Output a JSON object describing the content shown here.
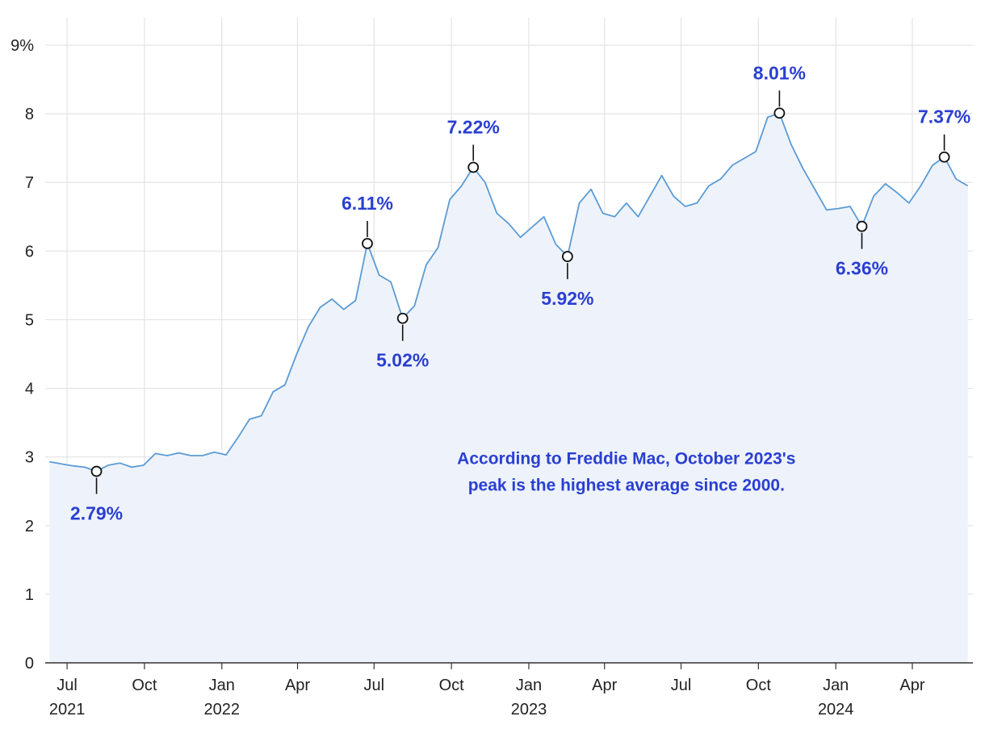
{
  "chart_data": {
    "type": "area",
    "series_color": "#5b9bd5",
    "fill_color": "#eef3fb",
    "accent_color": "#2a3fd1",
    "y_axis": {
      "ticks": [
        0,
        1,
        2,
        3,
        4,
        5,
        6,
        7,
        8,
        9
      ],
      "tick_labels": [
        "0",
        "1",
        "2",
        "3",
        "4",
        "5",
        "6",
        "7",
        "8",
        "9%"
      ],
      "ylim": [
        0,
        9
      ]
    },
    "x_axis": {
      "ticks": [
        {
          "date": "2021-07-01",
          "label": "Jul",
          "year": "2021"
        },
        {
          "date": "2021-10-01",
          "label": "Oct",
          "year": ""
        },
        {
          "date": "2022-01-01",
          "label": "Jan",
          "year": "2022"
        },
        {
          "date": "2022-04-01",
          "label": "Apr",
          "year": ""
        },
        {
          "date": "2022-07-01",
          "label": "Jul",
          "year": ""
        },
        {
          "date": "2022-10-01",
          "label": "Oct",
          "year": ""
        },
        {
          "date": "2023-01-01",
          "label": "Jan",
          "year": "2023"
        },
        {
          "date": "2023-04-01",
          "label": "Apr",
          "year": ""
        },
        {
          "date": "2023-07-01",
          "label": "Jul",
          "year": ""
        },
        {
          "date": "2023-10-01",
          "label": "Oct",
          "year": ""
        },
        {
          "date": "2024-01-01",
          "label": "Jan",
          "year": "2024"
        },
        {
          "date": "2024-04-01",
          "label": "Apr",
          "year": ""
        }
      ],
      "xlim": [
        "2021-06-05",
        "2024-06-12"
      ]
    },
    "grid": true,
    "points": [
      [
        "2021-06-10",
        2.93
      ],
      [
        "2021-06-24",
        2.9
      ],
      [
        "2021-07-08",
        2.87
      ],
      [
        "2021-07-22",
        2.85
      ],
      [
        "2021-08-05",
        2.79
      ],
      [
        "2021-08-19",
        2.88
      ],
      [
        "2021-09-02",
        2.91
      ],
      [
        "2021-09-16",
        2.85
      ],
      [
        "2021-09-30",
        2.88
      ],
      [
        "2021-10-14",
        3.05
      ],
      [
        "2021-10-28",
        3.02
      ],
      [
        "2021-11-11",
        3.06
      ],
      [
        "2021-11-25",
        3.02
      ],
      [
        "2021-12-09",
        3.02
      ],
      [
        "2021-12-23",
        3.07
      ],
      [
        "2022-01-06",
        3.03
      ],
      [
        "2022-01-20",
        3.28
      ],
      [
        "2022-02-03",
        3.55
      ],
      [
        "2022-02-17",
        3.6
      ],
      [
        "2022-03-03",
        3.95
      ],
      [
        "2022-03-17",
        4.05
      ],
      [
        "2022-03-31",
        4.5
      ],
      [
        "2022-04-14",
        4.9
      ],
      [
        "2022-04-28",
        5.18
      ],
      [
        "2022-05-12",
        5.3
      ],
      [
        "2022-05-26",
        5.15
      ],
      [
        "2022-06-09",
        5.28
      ],
      [
        "2022-06-23",
        6.11
      ],
      [
        "2022-07-07",
        5.65
      ],
      [
        "2022-07-21",
        5.55
      ],
      [
        "2022-08-04",
        5.02
      ],
      [
        "2022-08-18",
        5.2
      ],
      [
        "2022-09-01",
        5.8
      ],
      [
        "2022-09-15",
        6.05
      ],
      [
        "2022-09-29",
        6.75
      ],
      [
        "2022-10-13",
        6.95
      ],
      [
        "2022-10-27",
        7.22
      ],
      [
        "2022-11-10",
        7.0
      ],
      [
        "2022-11-24",
        6.55
      ],
      [
        "2022-12-08",
        6.4
      ],
      [
        "2022-12-22",
        6.2
      ],
      [
        "2023-01-05",
        6.35
      ],
      [
        "2023-01-19",
        6.5
      ],
      [
        "2023-02-02",
        6.1
      ],
      [
        "2023-02-16",
        5.92
      ],
      [
        "2023-03-02",
        6.7
      ],
      [
        "2023-03-16",
        6.9
      ],
      [
        "2023-03-30",
        6.55
      ],
      [
        "2023-04-13",
        6.5
      ],
      [
        "2023-04-27",
        6.7
      ],
      [
        "2023-05-11",
        6.5
      ],
      [
        "2023-05-25",
        6.8
      ],
      [
        "2023-06-08",
        7.1
      ],
      [
        "2023-06-22",
        6.8
      ],
      [
        "2023-07-06",
        6.65
      ],
      [
        "2023-07-20",
        6.7
      ],
      [
        "2023-08-03",
        6.95
      ],
      [
        "2023-08-17",
        7.05
      ],
      [
        "2023-08-31",
        7.25
      ],
      [
        "2023-09-14",
        7.35
      ],
      [
        "2023-09-28",
        7.45
      ],
      [
        "2023-10-12",
        7.95
      ],
      [
        "2023-10-26",
        8.01
      ],
      [
        "2023-11-09",
        7.55
      ],
      [
        "2023-11-23",
        7.2
      ],
      [
        "2023-12-07",
        6.9
      ],
      [
        "2023-12-21",
        6.6
      ],
      [
        "2024-01-04",
        6.62
      ],
      [
        "2024-01-18",
        6.65
      ],
      [
        "2024-02-01",
        6.36
      ],
      [
        "2024-02-15",
        6.8
      ],
      [
        "2024-02-29",
        6.98
      ],
      [
        "2024-03-14",
        6.85
      ],
      [
        "2024-03-28",
        6.7
      ],
      [
        "2024-04-11",
        6.95
      ],
      [
        "2024-04-25",
        7.25
      ],
      [
        "2024-05-09",
        7.37
      ],
      [
        "2024-05-23",
        7.05
      ],
      [
        "2024-06-06",
        6.95
      ]
    ],
    "annotations": [
      {
        "date": "2021-08-05",
        "value": 2.79,
        "label": "2.79%",
        "position": "below"
      },
      {
        "date": "2022-06-23",
        "value": 6.11,
        "label": "6.11%",
        "position": "above"
      },
      {
        "date": "2022-08-04",
        "value": 5.02,
        "label": "5.02%",
        "position": "below"
      },
      {
        "date": "2022-10-27",
        "value": 7.22,
        "label": "7.22%",
        "position": "above"
      },
      {
        "date": "2023-02-16",
        "value": 5.92,
        "label": "5.92%",
        "position": "below"
      },
      {
        "date": "2023-10-26",
        "value": 8.01,
        "label": "8.01%",
        "position": "above"
      },
      {
        "date": "2024-02-01",
        "value": 6.36,
        "label": "6.36%",
        "position": "below"
      },
      {
        "date": "2024-05-09",
        "value": 7.37,
        "label": "7.37%",
        "position": "above"
      }
    ],
    "note": {
      "lines": [
        "According to Freddie Mac, October 2023's",
        "peak is the highest average since 2000."
      ],
      "date": "2023-04-27",
      "value": 2.4
    }
  }
}
